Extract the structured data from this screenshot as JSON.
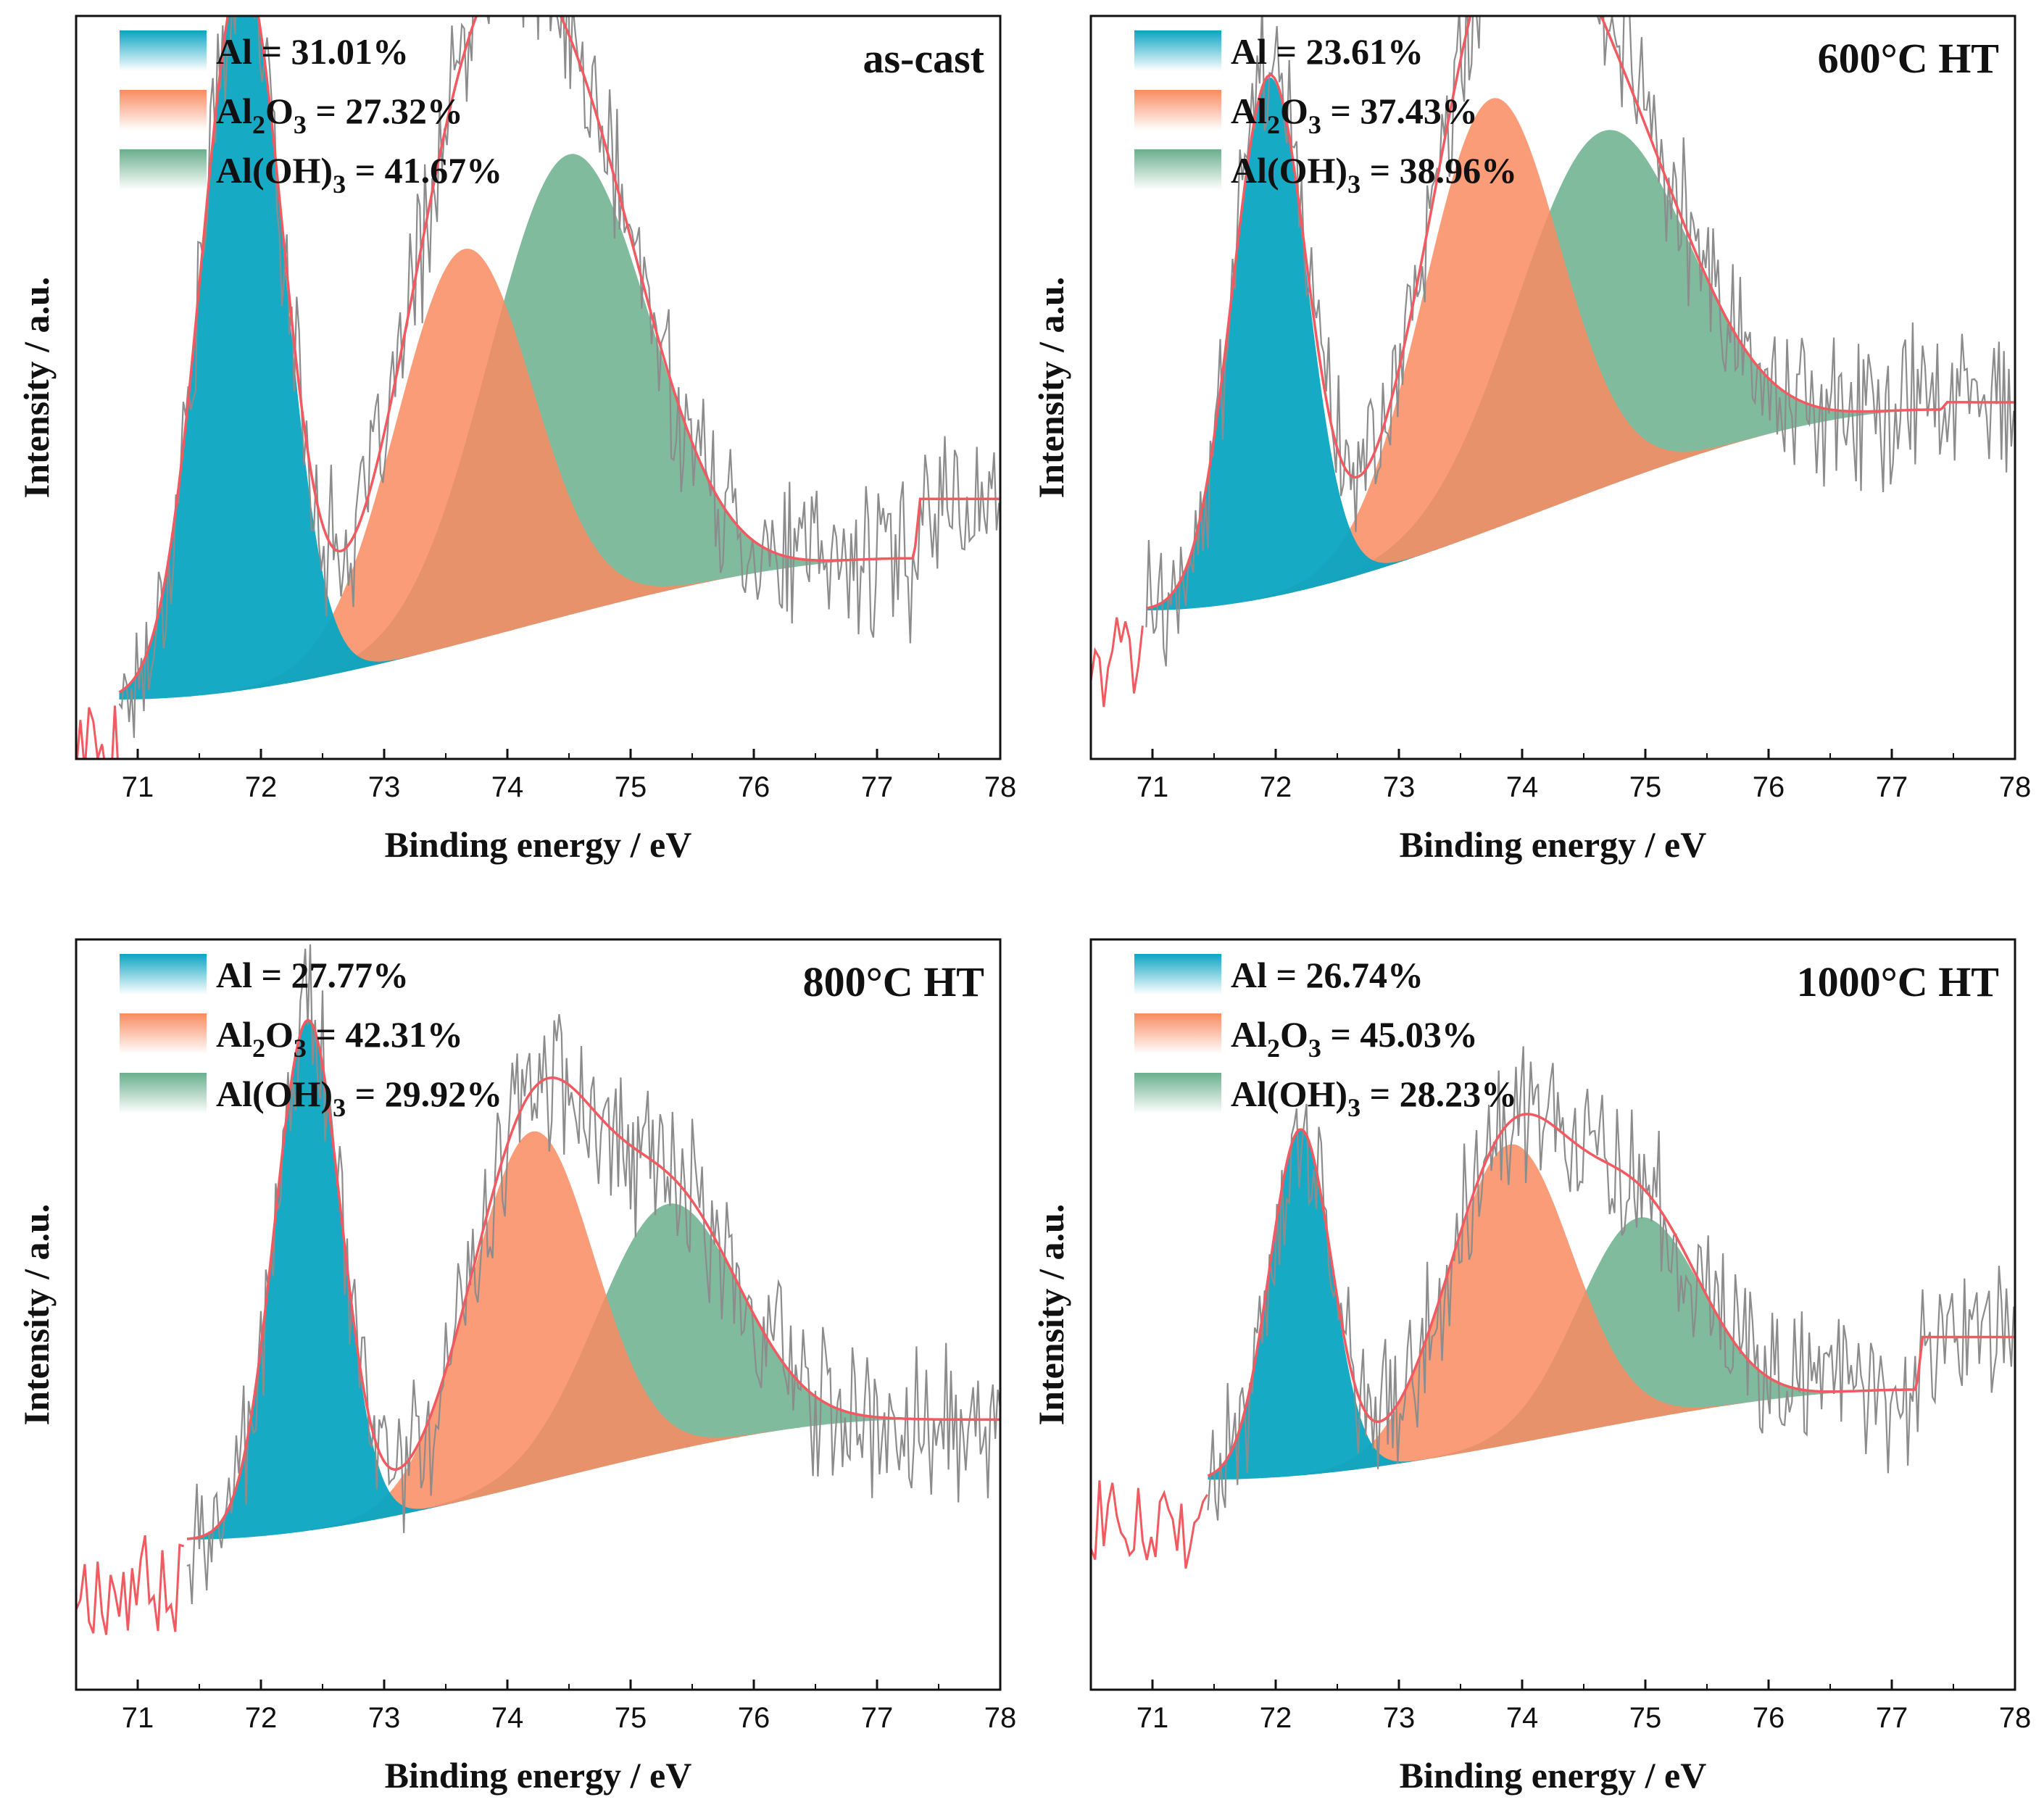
{
  "chart_data": [
    {
      "type": "area",
      "panel_label": "as-cast",
      "xlabel": "Binding energy / eV",
      "ylabel": "Intensity / a.u.",
      "xlim": [
        70.5,
        78
      ],
      "ylim": [
        0,
        100
      ],
      "x_ticks": [
        "71",
        "72",
        "73",
        "74",
        "75",
        "76",
        "77",
        "78"
      ],
      "legend": [
        {
          "base": "Al",
          "sub": "",
          "suffix": "",
          "value": "= 31.01%"
        },
        {
          "base": "Al",
          "sub": "2",
          "mid": "O",
          "sub2": "3",
          "value": "= 27.32%"
        },
        {
          "base": "Al(OH)",
          "sub": "3",
          "value": "= 41.67%"
        }
      ],
      "peaks": [
        {
          "name": "Al",
          "center": 71.85,
          "height": 97,
          "sigma": 0.33
        },
        {
          "name": "Al2O3",
          "center": 73.65,
          "height": 53,
          "sigma": 0.55
        },
        {
          "name": "Al(OH)3",
          "center": 74.5,
          "height": 62,
          "sigma": 0.65
        }
      ],
      "background": {
        "start_x": 70.85,
        "end_x": 77.3,
        "start_y": 8,
        "end_y": 27,
        "tail_y": 35
      },
      "data_start": 70.85,
      "envelope_peak": 74.0
    },
    {
      "type": "area",
      "panel_label": "600°C HT",
      "xlabel": "Binding energy / eV",
      "ylabel": "Intensity / a.u.",
      "xlim": [
        70.5,
        78
      ],
      "ylim": [
        0,
        100
      ],
      "x_ticks": [
        "71",
        "72",
        "73",
        "74",
        "75",
        "76",
        "77",
        "78"
      ],
      "legend": [
        {
          "base": "Al",
          "sub": "",
          "value": "= 23.61%"
        },
        {
          "base": "Al",
          "sub": "2",
          "mid": "O",
          "sub2": "3",
          "value": "= 37.43%"
        },
        {
          "base": "Al(OH)",
          "sub": "3",
          "value": "= 38.96%"
        }
      ],
      "peaks": [
        {
          "name": "Al",
          "center": 71.95,
          "height": 70,
          "sigma": 0.3
        },
        {
          "name": "Al2O3",
          "center": 73.75,
          "height": 58,
          "sigma": 0.55
        },
        {
          "name": "Al(OH)3",
          "center": 74.65,
          "height": 48,
          "sigma": 0.7
        }
      ],
      "background": {
        "start_x": 70.95,
        "end_x": 77.4,
        "start_y": 20,
        "end_y": 47,
        "tail_y": 48
      },
      "data_start": 70.95,
      "envelope_peak": 74.0
    },
    {
      "type": "area",
      "panel_label": "800°C HT",
      "xlabel": "Binding energy / eV",
      "ylabel": "Intensity / a.u.",
      "xlim": [
        70.5,
        78
      ],
      "ylim": [
        0,
        100
      ],
      "x_ticks": [
        "71",
        "72",
        "73",
        "74",
        "75",
        "76",
        "77",
        "78"
      ],
      "legend": [
        {
          "base": "Al",
          "sub": "",
          "value": "= 27.77%"
        },
        {
          "base": "Al",
          "sub": "2",
          "mid": "O",
          "sub2": "3",
          "value": "= 42.31%"
        },
        {
          "base": "Al(OH)",
          "sub": "3",
          "value": "= 29.92%"
        }
      ],
      "peaks": [
        {
          "name": "Al",
          "center": 72.38,
          "height": 68,
          "sigma": 0.27
        },
        {
          "name": "Al2O3",
          "center": 74.2,
          "height": 47,
          "sigma": 0.5
        },
        {
          "name": "Al(OH)3",
          "center": 75.3,
          "height": 33,
          "sigma": 0.58
        }
      ],
      "background": {
        "start_x": 71.4,
        "end_x": 77.3,
        "start_y": 20,
        "end_y": 36,
        "tail_y": 36
      },
      "data_start": 71.4,
      "envelope_peak": 74.6
    },
    {
      "type": "area",
      "panel_label": "1000°C HT",
      "xlabel": "Binding energy / eV",
      "ylabel": "Intensity / a.u.",
      "xlim": [
        70.5,
        78
      ],
      "ylim": [
        0,
        100
      ],
      "x_ticks": [
        "71",
        "72",
        "73",
        "74",
        "75",
        "76",
        "77",
        "78"
      ],
      "legend": [
        {
          "base": "Al",
          "sub": "",
          "value": "= 26.74%"
        },
        {
          "base": "Al",
          "sub": "2",
          "mid": "O",
          "sub2": "3",
          "value": "= 45.03%"
        },
        {
          "base": "Al(OH)",
          "sub": "3",
          "value": "= 28.23%"
        }
      ],
      "peaks": [
        {
          "name": "Al",
          "center": 72.2,
          "height": 46,
          "sigma": 0.25
        },
        {
          "name": "Al2O3",
          "center": 73.9,
          "height": 40,
          "sigma": 0.5
        },
        {
          "name": "Al(OH)3",
          "center": 74.95,
          "height": 27,
          "sigma": 0.5
        }
      ],
      "background": {
        "start_x": 71.45,
        "end_x": 77.2,
        "start_y": 28,
        "end_y": 40,
        "tail_y": 47
      },
      "data_start": 71.45,
      "envelope_peak": 74.3
    }
  ],
  "colors": {
    "al": "#0aa5c2",
    "al2o3": "#f98b60",
    "aloh3": "#6aaf8d",
    "envelope": "#f05a60",
    "raw": "#8c8c8c",
    "frame": "#111111"
  }
}
